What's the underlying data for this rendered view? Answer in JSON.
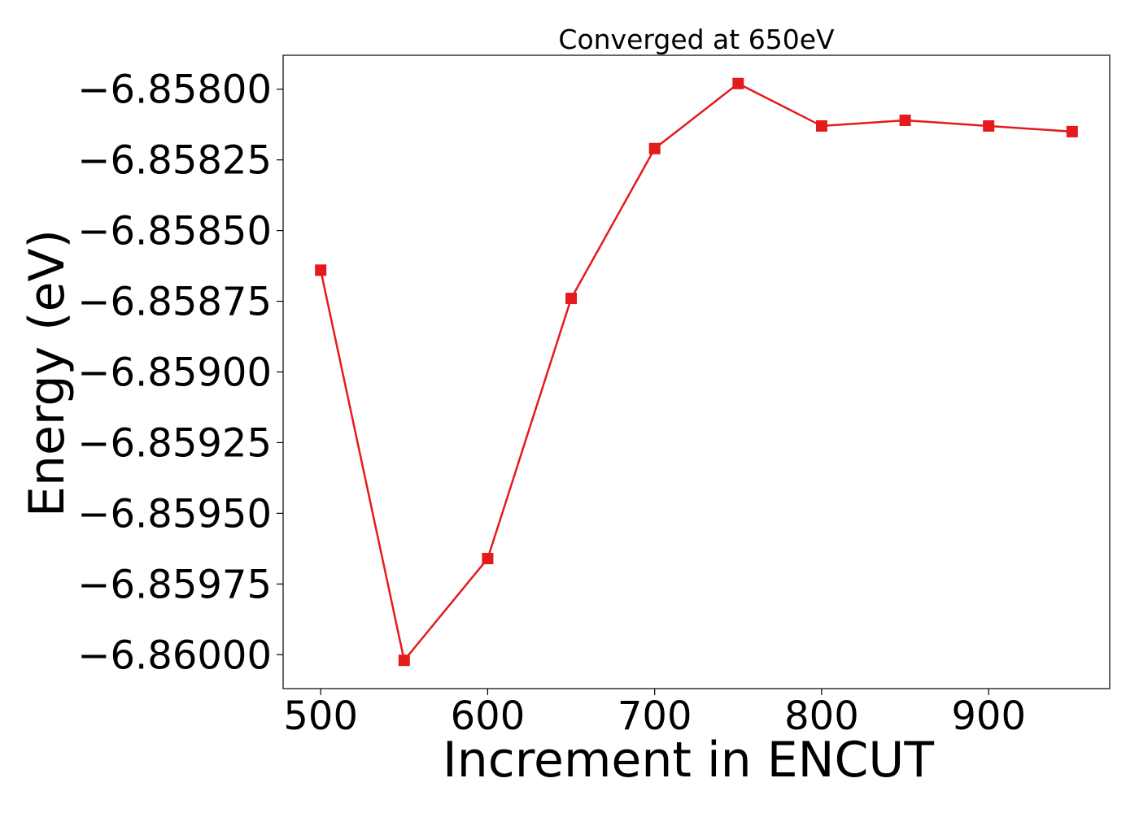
{
  "chart_data": {
    "type": "line",
    "title": "Converged at 650eV",
    "xlabel": "Increment in ENCUT",
    "ylabel": "Energy (eV)",
    "x": [
      500,
      550,
      600,
      650,
      700,
      750,
      800,
      850,
      900,
      950
    ],
    "series": [
      {
        "values": [
          -6.85864,
          -6.86002,
          -6.85966,
          -6.85874,
          -6.85821,
          -6.85798,
          -6.85813,
          -6.85811,
          -6.85813,
          -6.85815
        ],
        "color": "#e41a1c",
        "marker": "square"
      }
    ],
    "xlim": [
      477.5,
      972.5
    ],
    "ylim": [
      -6.86012,
      -6.85788
    ],
    "xticks": [
      500,
      600,
      700,
      800,
      900
    ],
    "xtick_labels": [
      "500",
      "600",
      "700",
      "800",
      "900"
    ],
    "yticks": [
      -6.858,
      -6.85825,
      -6.8585,
      -6.85875,
      -6.859,
      -6.85925,
      -6.8595,
      -6.85975,
      -6.86
    ],
    "ytick_labels": [
      "−6.85800",
      "−6.85825",
      "−6.85850",
      "−6.85875",
      "−6.85900",
      "−6.85925",
      "−6.85950",
      "−6.85975",
      "−6.86000"
    ],
    "grid": false,
    "legend": false
  }
}
